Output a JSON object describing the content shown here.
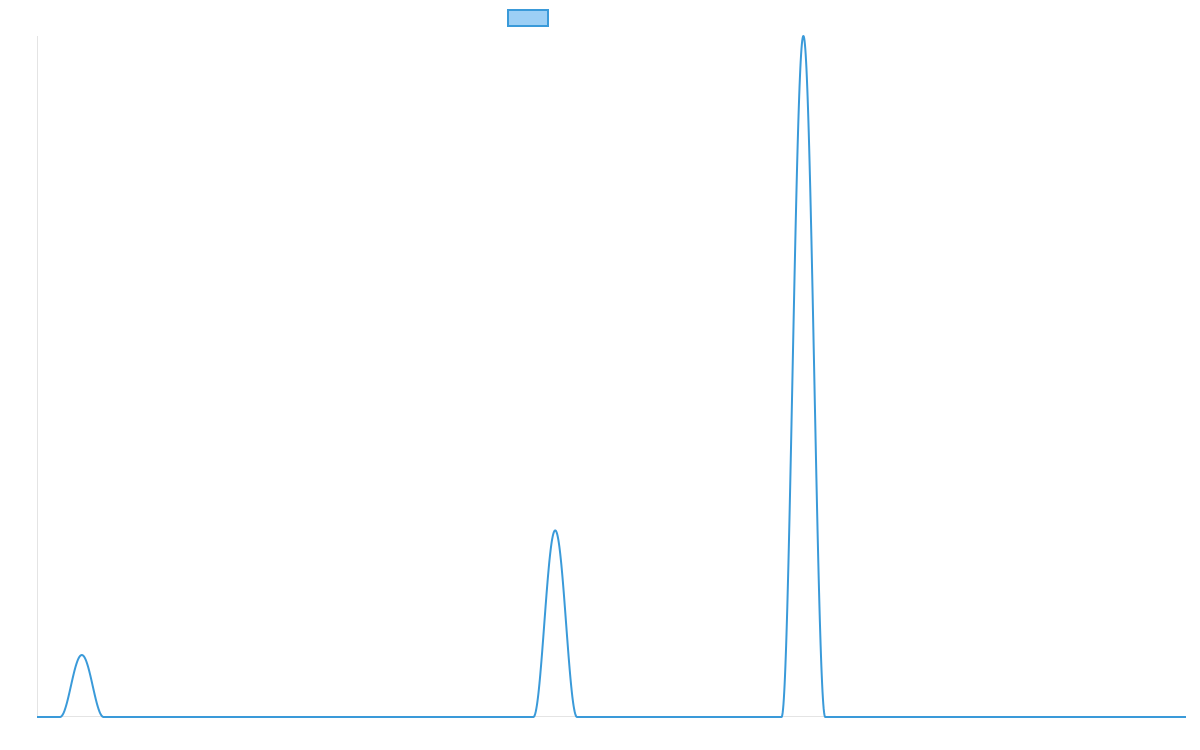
{
  "chart_data": {
    "type": "line",
    "title": "",
    "xlabel": "",
    "ylabel": "",
    "grid": false,
    "legend_placement": "top-center",
    "xlim": [
      0,
      1
    ],
    "ylim": [
      0,
      1
    ],
    "series": [
      {
        "color": "#3a9ad9",
        "fill_color": "#9ccff5",
        "peaks": [
          {
            "center": 0.039,
            "height": 0.091,
            "half_width": 0.019
          },
          {
            "center": 0.451,
            "height": 0.274,
            "half_width": 0.019
          },
          {
            "center": 0.667,
            "height": 1.0,
            "half_width": 0.019
          }
        ]
      }
    ]
  }
}
